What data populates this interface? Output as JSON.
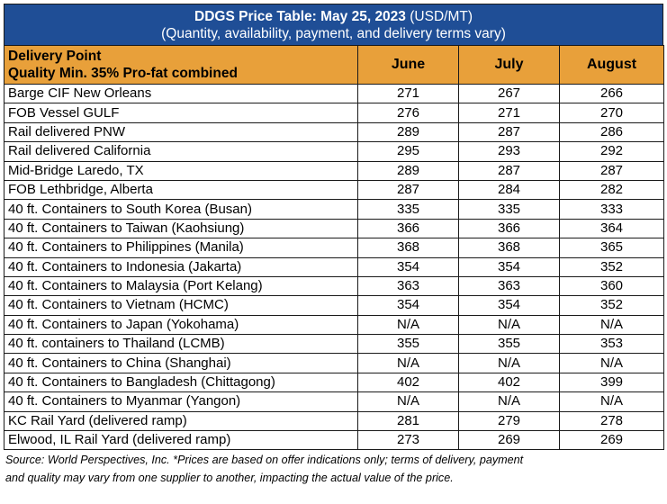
{
  "title": {
    "bold": "DDGS Price Table: May 25, 2023",
    "units": " (USD/MT)",
    "subtitle": "(Quantity, availability, payment, and delivery terms vary)"
  },
  "header": {
    "col1_line1": "Delivery Point",
    "col1_line2": "Quality Min. 35% Pro-fat combined",
    "months": [
      "June",
      "July",
      "August"
    ]
  },
  "rows": [
    {
      "point": "Barge CIF New Orleans",
      "june": "271",
      "july": "267",
      "august": "266"
    },
    {
      "point": "FOB Vessel GULF",
      "june": "276",
      "july": "271",
      "august": "270"
    },
    {
      "point": "Rail delivered PNW",
      "june": "289",
      "july": "287",
      "august": "286"
    },
    {
      "point": "Rail delivered California",
      "june": "295",
      "july": "293",
      "august": "292"
    },
    {
      "point": "Mid-Bridge Laredo, TX",
      "june": "289",
      "july": "287",
      "august": "287"
    },
    {
      "point": "FOB Lethbridge, Alberta",
      "june": "287",
      "july": "284",
      "august": "282"
    },
    {
      "point": "40 ft. Containers to South Korea (Busan)",
      "june": "335",
      "july": "335",
      "august": "333"
    },
    {
      "point": "40 ft. Containers to Taiwan (Kaohsiung)",
      "june": "366",
      "july": "366",
      "august": "364"
    },
    {
      "point": "40 ft. Containers to Philippines (Manila)",
      "june": "368",
      "july": "368",
      "august": "365"
    },
    {
      "point": "40 ft. Containers to Indonesia (Jakarta)",
      "june": "354",
      "july": "354",
      "august": "352"
    },
    {
      "point": "40 ft. Containers to Malaysia (Port Kelang)",
      "june": "363",
      "july": "363",
      "august": "360"
    },
    {
      "point": "40 ft. Containers to Vietnam (HCMC)",
      "june": "354",
      "july": "354",
      "august": "352"
    },
    {
      "point": "40 ft. Containers to Japan (Yokohama)",
      "june": "N/A",
      "july": "N/A",
      "august": "N/A"
    },
    {
      "point": "40 ft. containers to Thailand (LCMB)",
      "june": "355",
      "july": "355",
      "august": "353"
    },
    {
      "point": "40 ft. Containers to China (Shanghai)",
      "june": "N/A",
      "july": "N/A",
      "august": "N/A"
    },
    {
      "point": "40 ft. Containers to Bangladesh (Chittagong)",
      "june": "402",
      "july": "402",
      "august": "399"
    },
    {
      "point": "40 ft. Containers to Myanmar (Yangon)",
      "june": "N/A",
      "july": "N/A",
      "august": "N/A"
    },
    {
      "point": "KC Rail Yard (delivered ramp)",
      "june": "281",
      "july": "279",
      "august": "278"
    },
    {
      "point": "Elwood, IL Rail Yard (delivered ramp)",
      "june": "273",
      "july": "269",
      "august": "269"
    }
  ],
  "footnote": {
    "line1": "Source: World Perspectives, Inc. *Prices are based on offer indications only; terms of delivery, payment",
    "line2": "and quality may vary from one supplier to another, impacting the actual value of the price."
  },
  "colors": {
    "title_bg": "#1f4e96",
    "header_bg": "#e8a03a"
  }
}
